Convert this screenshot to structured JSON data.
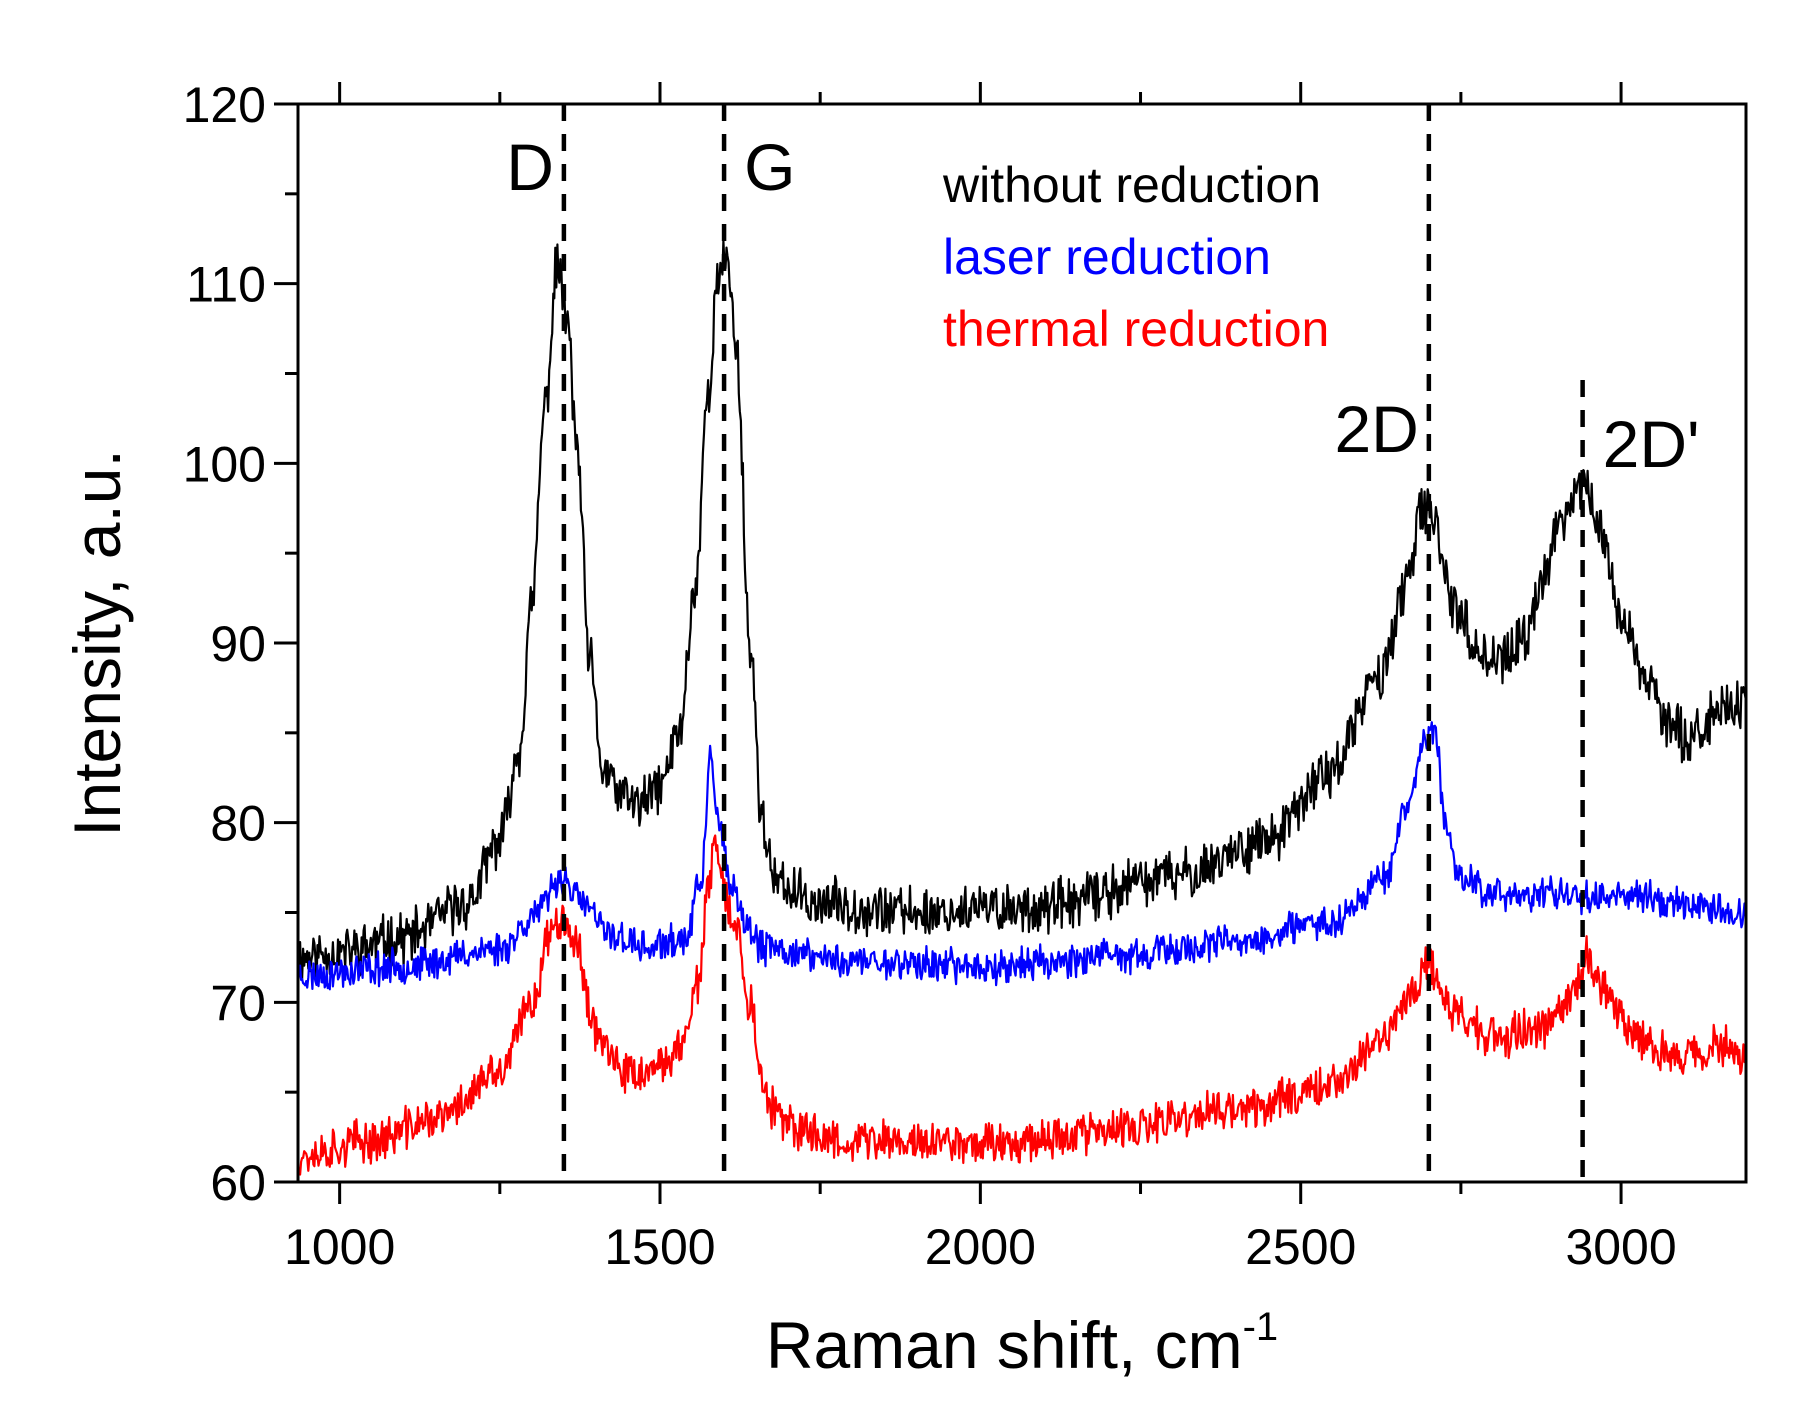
{
  "chart_data": {
    "type": "line",
    "xlabel": "Raman shift, cm",
    "xlabel_superscript": "-1",
    "ylabel": "Intensity, a.u.",
    "xlim": [
      935,
      3195
    ],
    "ylim": [
      60,
      120
    ],
    "xticks": [
      1000,
      1500,
      2000,
      2500,
      3000
    ],
    "yticks": [
      60,
      70,
      80,
      90,
      100,
      110,
      120
    ],
    "grid": false,
    "legend": {
      "placement": "top-right"
    },
    "reference_lines": [
      {
        "label": "D",
        "x": 1350
      },
      {
        "label": "G",
        "x": 1600
      },
      {
        "label": "2D",
        "x": 2700
      },
      {
        "label": "2D'",
        "x": 2940
      }
    ],
    "series": [
      {
        "name": "without reduction",
        "color": "#000000",
        "noise": 1.2,
        "seed": 11,
        "points": [
          [
            935,
            72.5
          ],
          [
            1000,
            72.8
          ],
          [
            1100,
            73.6
          ],
          [
            1200,
            75.5
          ],
          [
            1250,
            79
          ],
          [
            1280,
            84
          ],
          [
            1300,
            92
          ],
          [
            1320,
            103
          ],
          [
            1340,
            111
          ],
          [
            1355,
            108
          ],
          [
            1370,
            101
          ],
          [
            1390,
            89
          ],
          [
            1410,
            83
          ],
          [
            1440,
            81.5
          ],
          [
            1470,
            81
          ],
          [
            1500,
            82
          ],
          [
            1530,
            85
          ],
          [
            1555,
            93
          ],
          [
            1575,
            104
          ],
          [
            1590,
            110
          ],
          [
            1605,
            111.5
          ],
          [
            1620,
            106
          ],
          [
            1640,
            90
          ],
          [
            1660,
            80
          ],
          [
            1680,
            76.5
          ],
          [
            1750,
            75.5
          ],
          [
            1900,
            75
          ],
          [
            2100,
            75.3
          ],
          [
            2300,
            77
          ],
          [
            2450,
            79
          ],
          [
            2550,
            83
          ],
          [
            2620,
            88
          ],
          [
            2665,
            93
          ],
          [
            2690,
            97.5
          ],
          [
            2710,
            96.5
          ],
          [
            2740,
            92
          ],
          [
            2780,
            89.5
          ],
          [
            2810,
            89
          ],
          [
            2850,
            90
          ],
          [
            2880,
            94
          ],
          [
            2910,
            97
          ],
          [
            2940,
            99
          ],
          [
            2965,
            96.5
          ],
          [
            3000,
            91.5
          ],
          [
            3040,
            88
          ],
          [
            3080,
            85
          ],
          [
            3120,
            85
          ],
          [
            3160,
            86.5
          ],
          [
            3195,
            86.5
          ]
        ]
      },
      {
        "name": "laser reduction",
        "color": "#0000ff",
        "noise": 0.8,
        "seed": 23,
        "points": [
          [
            935,
            71.5
          ],
          [
            1100,
            72
          ],
          [
            1250,
            73
          ],
          [
            1310,
            75
          ],
          [
            1345,
            77
          ],
          [
            1380,
            75.5
          ],
          [
            1420,
            73.8
          ],
          [
            1480,
            73
          ],
          [
            1540,
            73.5
          ],
          [
            1565,
            77
          ],
          [
            1580,
            84
          ],
          [
            1590,
            80
          ],
          [
            1610,
            76.5
          ],
          [
            1630,
            74.5
          ],
          [
            1660,
            73
          ],
          [
            1800,
            72.3
          ],
          [
            2000,
            72
          ],
          [
            2200,
            72.5
          ],
          [
            2400,
            73.3
          ],
          [
            2550,
            74.5
          ],
          [
            2630,
            77
          ],
          [
            2670,
            81
          ],
          [
            2690,
            84.5
          ],
          [
            2710,
            85
          ],
          [
            2725,
            80
          ],
          [
            2750,
            77
          ],
          [
            2800,
            76
          ],
          [
            3000,
            76
          ],
          [
            3195,
            75
          ]
        ]
      },
      {
        "name": "thermal reduction",
        "color": "#ff0000",
        "noise": 1.0,
        "seed": 37,
        "points": [
          [
            935,
            61.5
          ],
          [
            1050,
            62.3
          ],
          [
            1150,
            63.5
          ],
          [
            1250,
            66
          ],
          [
            1300,
            70
          ],
          [
            1330,
            74
          ],
          [
            1350,
            75
          ],
          [
            1370,
            73
          ],
          [
            1400,
            68.5
          ],
          [
            1440,
            66
          ],
          [
            1490,
            66
          ],
          [
            1530,
            67.5
          ],
          [
            1560,
            71
          ],
          [
            1575,
            76
          ],
          [
            1585,
            79
          ],
          [
            1600,
            76
          ],
          [
            1620,
            74
          ],
          [
            1640,
            70
          ],
          [
            1665,
            64.5
          ],
          [
            1700,
            63
          ],
          [
            1800,
            62.3
          ],
          [
            2000,
            62.2
          ],
          [
            2200,
            62.8
          ],
          [
            2400,
            64
          ],
          [
            2550,
            65.5
          ],
          [
            2630,
            68
          ],
          [
            2680,
            71
          ],
          [
            2700,
            72
          ],
          [
            2740,
            69.5
          ],
          [
            2800,
            68
          ],
          [
            2870,
            68.5
          ],
          [
            2920,
            70
          ],
          [
            2945,
            72.5
          ],
          [
            2970,
            71
          ],
          [
            3020,
            68
          ],
          [
            3080,
            67
          ],
          [
            3150,
            67.5
          ],
          [
            3195,
            67
          ]
        ]
      }
    ]
  }
}
